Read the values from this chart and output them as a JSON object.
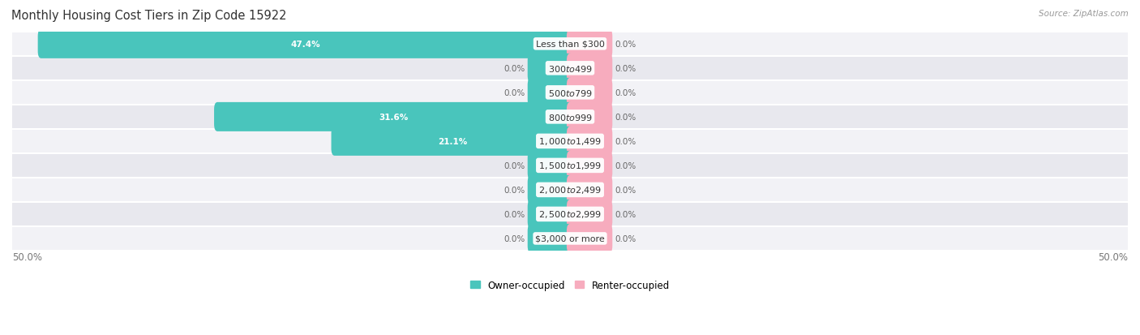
{
  "title": "Monthly Housing Cost Tiers in Zip Code 15922",
  "source": "Source: ZipAtlas.com",
  "categories": [
    "Less than $300",
    "$300 to $499",
    "$500 to $799",
    "$800 to $999",
    "$1,000 to $1,499",
    "$1,500 to $1,999",
    "$2,000 to $2,499",
    "$2,500 to $2,999",
    "$3,000 or more"
  ],
  "owner_values": [
    47.4,
    0.0,
    0.0,
    31.6,
    21.1,
    0.0,
    0.0,
    0.0,
    0.0
  ],
  "renter_values": [
    0.0,
    0.0,
    0.0,
    0.0,
    0.0,
    0.0,
    0.0,
    0.0,
    0.0
  ],
  "owner_color": "#49C5BC",
  "renter_color": "#F7ACBE",
  "row_bg_light": "#F2F2F6",
  "row_bg_dark": "#E8E8EE",
  "axis_limit": 50.0,
  "min_bar_val": 3.5,
  "title_fontsize": 10.5,
  "source_fontsize": 7.5,
  "tick_fontsize": 8.5,
  "legend_fontsize": 8.5,
  "category_fontsize": 8.0,
  "value_fontsize": 7.5
}
